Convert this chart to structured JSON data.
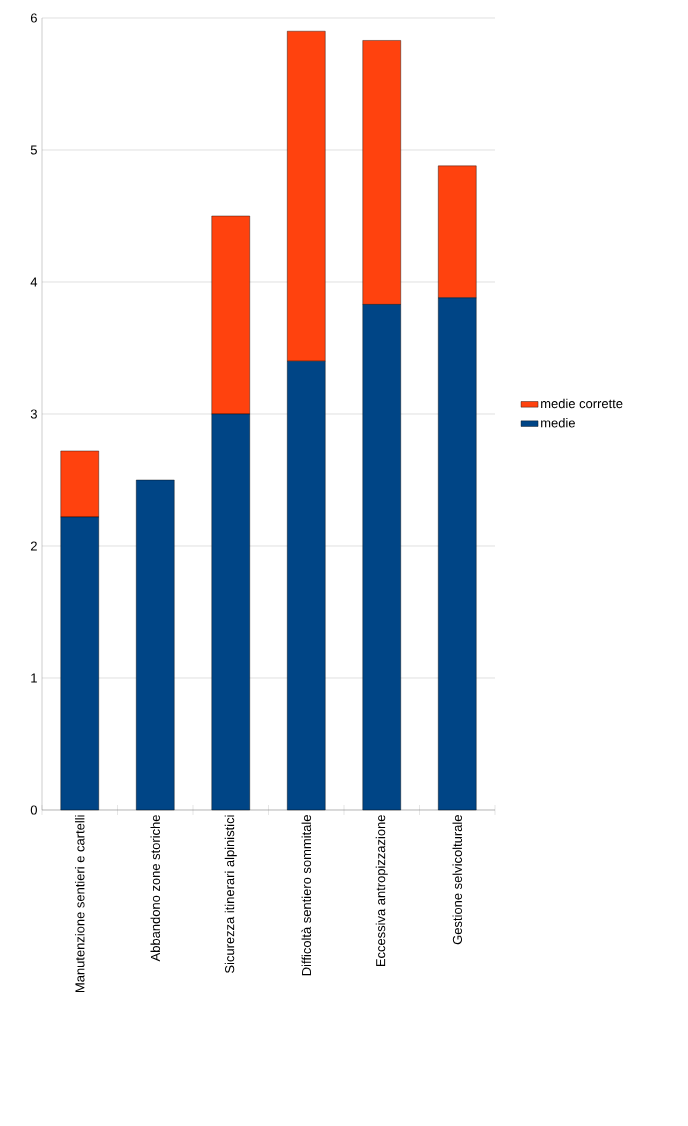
{
  "chart_data": {
    "type": "bar",
    "stacked": true,
    "categories": [
      "Manutenzione sentieri e cartelli",
      "Abbandono zone storiche",
      "Sicurezza itinerari alpinistici",
      "Difficoltà sentiero sommitale",
      "Eccessiva antropizzazione",
      "Gestione selvicolturale"
    ],
    "series": [
      {
        "name": "medie",
        "color": "#004586",
        "values": [
          2.22,
          2.5,
          3.0,
          3.4,
          3.83,
          3.88
        ]
      },
      {
        "name": "medie corrette",
        "color": "#ff420e",
        "values": [
          0.5,
          0,
          1.5,
          2.5,
          2.0,
          1.0
        ]
      }
    ],
    "ylim": [
      0,
      6
    ],
    "yticks": [
      0,
      1,
      2,
      3,
      4,
      5,
      6
    ],
    "grid": "y",
    "legend": "right"
  }
}
